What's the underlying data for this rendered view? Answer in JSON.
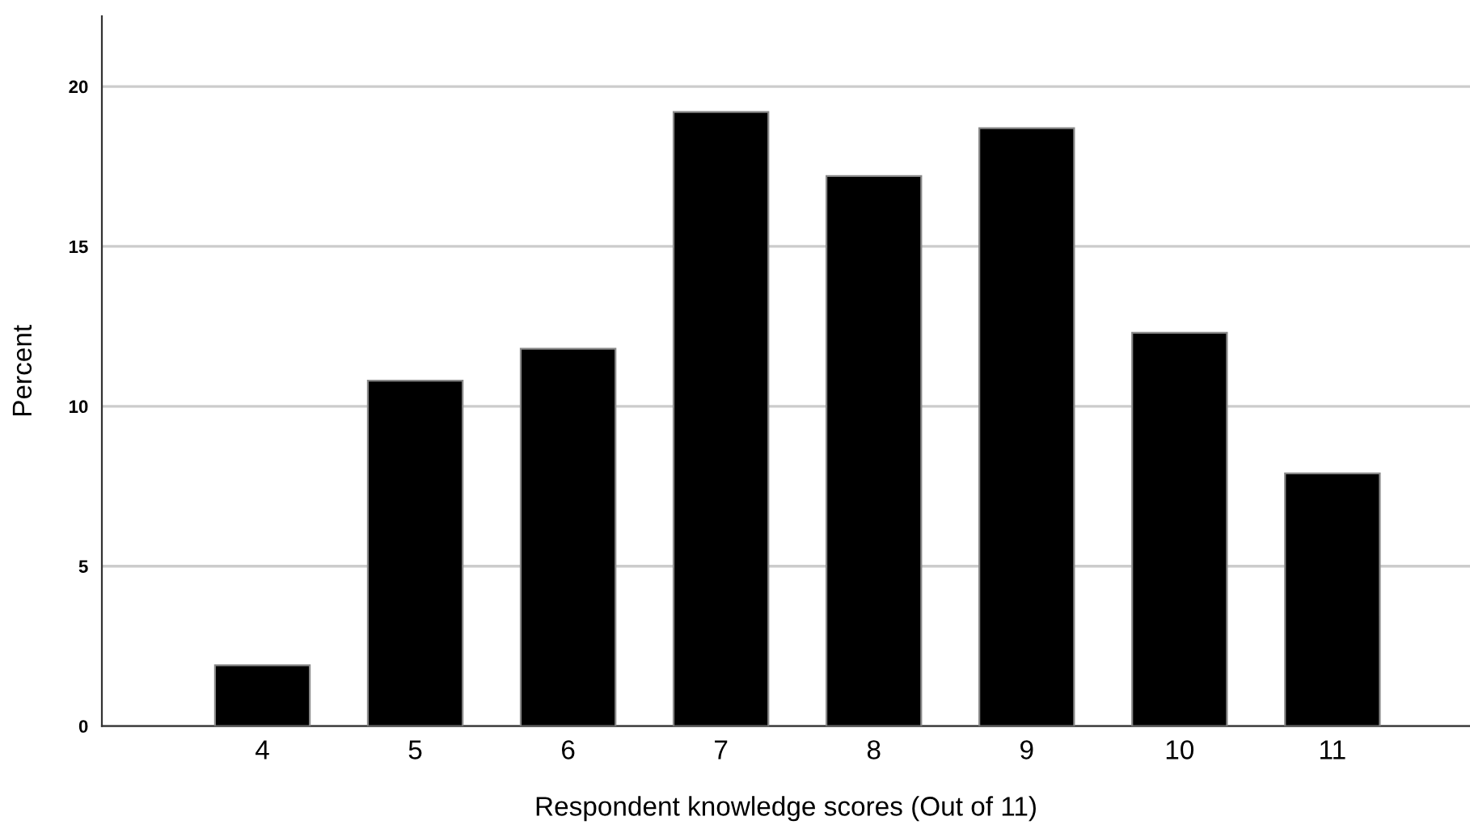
{
  "chart_data": {
    "type": "bar",
    "xlabel": "Respondent knowledge scores (Out of 11)",
    "ylabel": "Percent",
    "categories": [
      "4",
      "5",
      "6",
      "7",
      "8",
      "9",
      "10",
      "11"
    ],
    "values": [
      1.9,
      10.8,
      11.8,
      19.2,
      17.2,
      18.7,
      12.3,
      7.9
    ],
    "color": "#000000",
    "ylim": [
      0,
      22.2
    ],
    "yticks": [
      0,
      5,
      10,
      15,
      20
    ],
    "grid": "y"
  }
}
